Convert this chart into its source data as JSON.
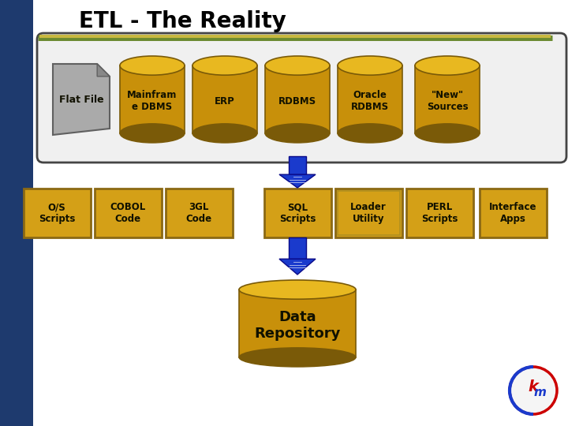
{
  "title": "ETL - The Reality",
  "background_color": "#ffffff",
  "left_bar_color": "#1e3a6e",
  "title_color": "#000000",
  "cylinder_color": "#c8900a",
  "cylinder_top": "#e8b820",
  "cylinder_shadow": "#7a5a08",
  "box_border": "#8b6914",
  "box_fill": "#d4a017",
  "arrow_color": "#1a3acc",
  "arrow_edge": "#0a0a88",
  "flat_file_color": "#aaaaaa",
  "flat_file_border": "#606060",
  "top_row_labels": [
    "Mainfram\ne DBMS",
    "ERP",
    "RDBMS",
    "Oracle\nRDBMS",
    "\"New\"\nSources"
  ],
  "bottom_row_labels": [
    "O/S\nScripts",
    "COBOL\nCode",
    "3GL\nCode",
    "SQL\nScripts",
    "Loader\nUtility",
    "PERL\nScripts",
    "Interface\nApps"
  ],
  "repo_label": "Data\nRepository",
  "line_color1": "#6a8a30",
  "line_color2": "#c8b840",
  "top_border_color": "#444444",
  "top_border_fill": "#f0f0f0"
}
